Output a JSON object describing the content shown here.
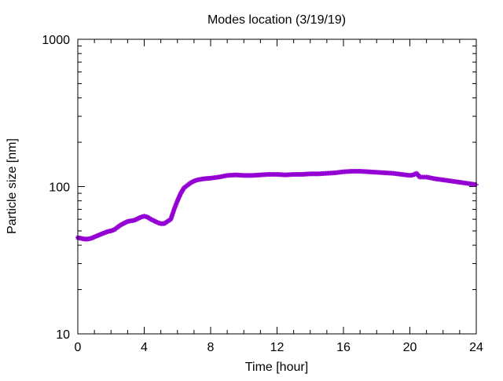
{
  "chart_data": {
    "type": "scatter",
    "title": "Modes location (3/19/19)",
    "xlabel": "Time [hour]",
    "ylabel": "Particle size [nm]",
    "xlim": [
      0,
      24
    ],
    "ylim": [
      10,
      1000
    ],
    "yscale": "log",
    "x_ticks": [
      0,
      4,
      8,
      12,
      16,
      20,
      24
    ],
    "x_tick_labels": [
      "0",
      "4",
      "8",
      "12",
      "16",
      "20",
      "24"
    ],
    "y_ticks": [
      10,
      100,
      1000
    ],
    "y_tick_labels": [
      "10",
      "100",
      "1000"
    ],
    "grid": false,
    "legend": "none",
    "series": [
      {
        "color": "#9400d3",
        "marker": "star",
        "x": [
          0.0,
          0.2,
          0.4,
          0.6,
          0.8,
          1.0,
          1.2,
          1.4,
          1.6,
          1.8,
          2.0,
          2.2,
          2.4,
          2.6,
          2.8,
          3.0,
          3.2,
          3.4,
          3.6,
          3.8,
          4.0,
          4.2,
          4.4,
          4.6,
          4.8,
          5.0,
          5.2,
          5.4,
          5.6,
          5.8,
          6.0,
          6.2,
          6.4,
          6.6,
          6.8,
          7.0,
          7.2,
          7.4,
          7.6,
          7.8,
          8.0,
          8.5,
          9.0,
          9.5,
          10.0,
          10.5,
          11.0,
          11.5,
          12.0,
          12.5,
          13.0,
          13.5,
          14.0,
          14.5,
          15.0,
          15.5,
          16.0,
          16.5,
          17.0,
          17.5,
          18.0,
          18.5,
          19.0,
          19.5,
          20.0,
          20.2,
          20.4,
          20.6,
          21.0,
          21.5,
          22.0,
          22.5,
          23.0,
          23.5,
          24.0
        ],
        "y": [
          45,
          44.5,
          44,
          44,
          44.5,
          45.5,
          46.5,
          47.5,
          48.5,
          49.5,
          50,
          51,
          53,
          55,
          56.5,
          58,
          58.5,
          59,
          60.5,
          62,
          63,
          62,
          60,
          58.5,
          57,
          56,
          56,
          58,
          60,
          70,
          80,
          90,
          98,
          102,
          106,
          109,
          111,
          112,
          113,
          113.5,
          114,
          116,
          119,
          120,
          119,
          119,
          120,
          121,
          121,
          120,
          121,
          121,
          122,
          122,
          123,
          124,
          126,
          127,
          127,
          126,
          125,
          124,
          123,
          121,
          119,
          120,
          123,
          116,
          116,
          113,
          111,
          109,
          107,
          105,
          103
        ]
      }
    ]
  }
}
